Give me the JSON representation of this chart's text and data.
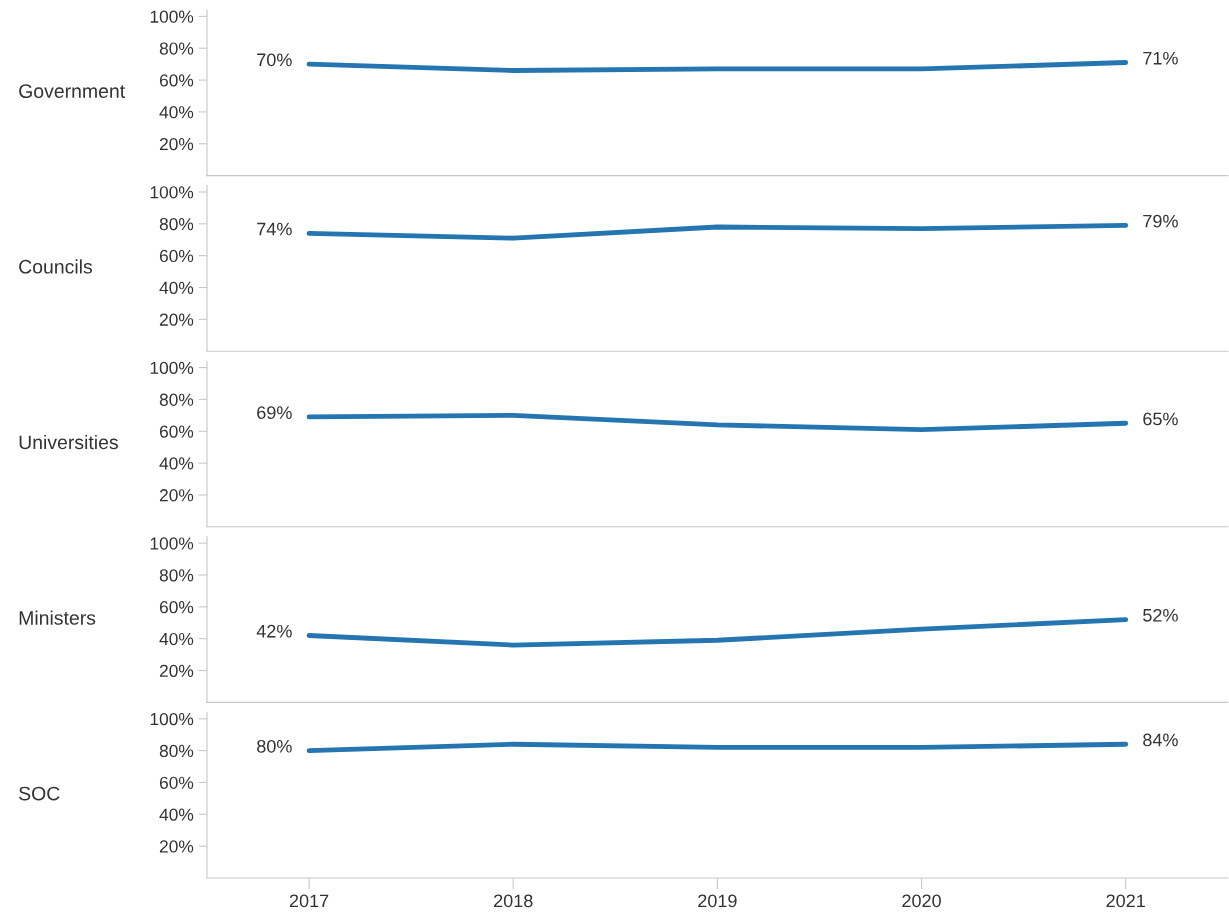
{
  "chart_data": [
    {
      "type": "line",
      "title": "Government",
      "categories": [
        "2017",
        "2018",
        "2019",
        "2020",
        "2021"
      ],
      "ylim": [
        0,
        104
      ],
      "yticks": [
        {
          "value": 20,
          "label": "20%"
        },
        {
          "value": 40,
          "label": "40%"
        },
        {
          "value": 60,
          "label": "60%"
        },
        {
          "value": 80,
          "label": "80%"
        },
        {
          "value": 100,
          "label": "100%"
        }
      ],
      "tick_labels": "y",
      "grid": false,
      "series": [
        {
          "color": "#2475b0",
          "values": [
            70,
            66,
            67,
            67,
            71
          ],
          "value_labels": [
            "70%",
            null,
            null,
            null,
            "71%"
          ]
        }
      ]
    },
    {
      "type": "line",
      "title": "Councils",
      "categories": [
        "2017",
        "2018",
        "2019",
        "2020",
        "2021"
      ],
      "ylim": [
        0,
        104
      ],
      "yticks": [
        {
          "value": 20,
          "label": "20%"
        },
        {
          "value": 40,
          "label": "40%"
        },
        {
          "value": 60,
          "label": "60%"
        },
        {
          "value": 80,
          "label": "80%"
        },
        {
          "value": 100,
          "label": "100%"
        }
      ],
      "tick_labels": "y",
      "grid": false,
      "series": [
        {
          "color": "#2475b0",
          "values": [
            74,
            71,
            78,
            77,
            79
          ],
          "value_labels": [
            "74%",
            null,
            null,
            null,
            "79%"
          ]
        }
      ]
    },
    {
      "type": "line",
      "title": "Universities",
      "categories": [
        "2017",
        "2018",
        "2019",
        "2020",
        "2021"
      ],
      "ylim": [
        0,
        104
      ],
      "yticks": [
        {
          "value": 20,
          "label": "20%"
        },
        {
          "value": 40,
          "label": "40%"
        },
        {
          "value": 60,
          "label": "60%"
        },
        {
          "value": 80,
          "label": "80%"
        },
        {
          "value": 100,
          "label": "100%"
        }
      ],
      "tick_labels": "y",
      "grid": false,
      "series": [
        {
          "color": "#2475b0",
          "values": [
            69,
            70,
            64,
            61,
            65
          ],
          "value_labels": [
            "69%",
            null,
            null,
            null,
            "65%"
          ]
        }
      ]
    },
    {
      "type": "line",
      "title": "Ministers",
      "categories": [
        "2017",
        "2018",
        "2019",
        "2020",
        "2021"
      ],
      "ylim": [
        0,
        104
      ],
      "yticks": [
        {
          "value": 20,
          "label": "20%"
        },
        {
          "value": 40,
          "label": "40%"
        },
        {
          "value": 60,
          "label": "60%"
        },
        {
          "value": 80,
          "label": "80%"
        },
        {
          "value": 100,
          "label": "100%"
        }
      ],
      "tick_labels": "y",
      "grid": false,
      "series": [
        {
          "color": "#2475b0",
          "values": [
            42,
            36,
            39,
            46,
            52
          ],
          "value_labels": [
            "42%",
            null,
            null,
            null,
            "52%"
          ]
        }
      ]
    },
    {
      "type": "line",
      "title": "SOC",
      "categories": [
        "2017",
        "2018",
        "2019",
        "2020",
        "2021"
      ],
      "ylim": [
        0,
        104
      ],
      "yticks": [
        {
          "value": 20,
          "label": "20%"
        },
        {
          "value": 40,
          "label": "40%"
        },
        {
          "value": 60,
          "label": "60%"
        },
        {
          "value": 80,
          "label": "80%"
        },
        {
          "value": 100,
          "label": "100%"
        }
      ],
      "grid": false,
      "series": [
        {
          "color": "#2475b0",
          "values": [
            80,
            84,
            82,
            82,
            84
          ],
          "value_labels": [
            "80%",
            null,
            null,
            null,
            "84%"
          ]
        }
      ]
    }
  ]
}
